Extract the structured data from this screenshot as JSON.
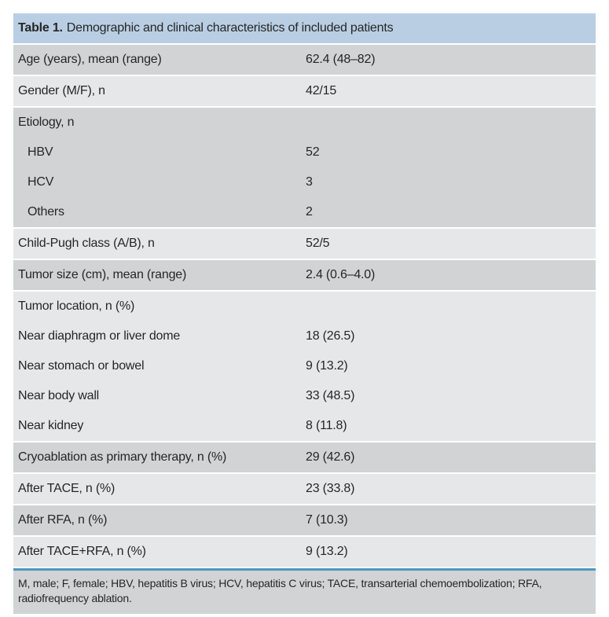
{
  "table": {
    "title": {
      "label": "Table 1.",
      "text": "Demographic and clinical characteristics of included patients"
    },
    "rows": [
      {
        "label": "Age (years), mean (range)",
        "value": "62.4 (48–82)",
        "shade": "dark",
        "indent": false,
        "grouped": false
      },
      {
        "label": "Gender (M/F), n",
        "value": "42/15",
        "shade": "light",
        "indent": false,
        "grouped": false
      },
      {
        "label": "Etiology, n",
        "value": "",
        "shade": "dark",
        "indent": false,
        "grouped": false
      },
      {
        "label": "HBV",
        "value": "52",
        "shade": "dark",
        "indent": true,
        "grouped": true
      },
      {
        "label": "HCV",
        "value": "3",
        "shade": "dark",
        "indent": true,
        "grouped": true
      },
      {
        "label": "Others",
        "value": "2",
        "shade": "dark",
        "indent": true,
        "grouped": true
      },
      {
        "label": "Child-Pugh class (A/B), n",
        "value": "52/5",
        "shade": "light",
        "indent": false,
        "grouped": false
      },
      {
        "label": "Tumor size (cm), mean (range)",
        "value": "2.4 (0.6–4.0)",
        "shade": "dark",
        "indent": false,
        "grouped": false
      },
      {
        "label": "Tumor location, n (%)",
        "value": "",
        "shade": "light",
        "indent": false,
        "grouped": false
      },
      {
        "label": "Near diaphragm or liver dome",
        "value": "18 (26.5)",
        "shade": "light",
        "indent": false,
        "grouped": true
      },
      {
        "label": "Near stomach or bowel",
        "value": "9 (13.2)",
        "shade": "light",
        "indent": false,
        "grouped": true
      },
      {
        "label": "Near body wall",
        "value": "33 (48.5)",
        "shade": "light",
        "indent": false,
        "grouped": true
      },
      {
        "label": "Near kidney",
        "value": "8 (11.8)",
        "shade": "light",
        "indent": false,
        "grouped": true
      },
      {
        "label": "Cryoablation as primary therapy, n (%)",
        "value": "29 (42.6)",
        "shade": "dark",
        "indent": false,
        "grouped": false
      },
      {
        "label": "After TACE, n (%)",
        "value": "23 (33.8)",
        "shade": "light",
        "indent": false,
        "grouped": false
      },
      {
        "label": "After RFA, n (%)",
        "value": "7 (10.3)",
        "shade": "dark",
        "indent": false,
        "grouped": false
      },
      {
        "label": "After TACE+RFA, n (%)",
        "value": "9 (13.2)",
        "shade": "light",
        "indent": false,
        "grouped": false
      }
    ],
    "footnote": "M, male; F, female; HBV, hepatitis B virus; HCV, hepatitis C virus; TACE, transarterial chemoembolization; RFA, radiofrequency ablation.",
    "colors": {
      "header_bg": "#b9cee3",
      "row_dark": "#d1d3d4",
      "row_light": "#e6e7e8",
      "rule_blue": "#4f97c2",
      "text": "#262626"
    }
  }
}
